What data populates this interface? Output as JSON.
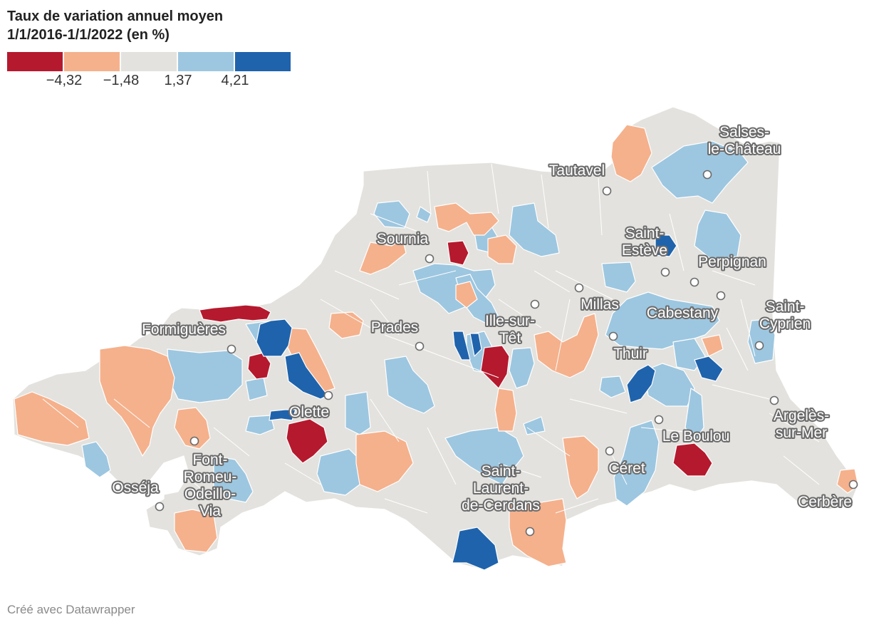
{
  "title": {
    "line1": "Taux de variation annuel moyen",
    "line2": "1/1/2016-1/1/2022 (en %)"
  },
  "legend": {
    "colors": [
      "#b5192d",
      "#f5b08c",
      "#e3e2de",
      "#9dc6e0",
      "#1f63ad"
    ],
    "ticks": [
      "−4,32",
      "−1,48",
      "1,37",
      "4,21"
    ],
    "tick_values": [
      -4.32,
      -1.48,
      1.37,
      4.21
    ]
  },
  "cities": [
    {
      "name": "Salses-le-Château",
      "lines": [
        "Salses-",
        "le-Château"
      ]
    },
    {
      "name": "Tautavel",
      "lines": [
        "Tautavel"
      ]
    },
    {
      "name": "Saint-Estève",
      "lines": [
        "Saint-",
        "Estève"
      ]
    },
    {
      "name": "Sournia",
      "lines": [
        "Sournia"
      ]
    },
    {
      "name": "Perpignan",
      "lines": [
        "Perpignan"
      ]
    },
    {
      "name": "Millas",
      "lines": [
        "Millas"
      ]
    },
    {
      "name": "Cabestany",
      "lines": [
        "Cabestany"
      ]
    },
    {
      "name": "Saint-Cyprien",
      "lines": [
        "Saint-",
        "Cyprien"
      ]
    },
    {
      "name": "Formiguères",
      "lines": [
        "Formiguères"
      ]
    },
    {
      "name": "Prades",
      "lines": [
        "Prades"
      ]
    },
    {
      "name": "Ille-sur-Têt",
      "lines": [
        "Ille-sur-",
        "Têt"
      ]
    },
    {
      "name": "Thuir",
      "lines": [
        "Thuir"
      ]
    },
    {
      "name": "Olette",
      "lines": [
        "Olette"
      ]
    },
    {
      "name": "Argelès-sur-Mer",
      "lines": [
        "Argelès-",
        "sur-Mer"
      ]
    },
    {
      "name": "Le Boulou",
      "lines": [
        "Le Boulou"
      ]
    },
    {
      "name": "Font-Romeu-Odeillo-Via",
      "lines": [
        "Font-",
        "Romeu-",
        "Odeillo-",
        "Via"
      ]
    },
    {
      "name": "Céret",
      "lines": [
        "Céret"
      ]
    },
    {
      "name": "Saint-Laurent-de-Cerdans",
      "lines": [
        "Saint-",
        "Laurent-",
        "de-Cerdans"
      ]
    },
    {
      "name": "Osséja",
      "lines": [
        "Osséja"
      ]
    },
    {
      "name": "Cerbère",
      "lines": [
        "Cerbère"
      ]
    }
  ],
  "credit": "Créé avec Datawrapper"
}
